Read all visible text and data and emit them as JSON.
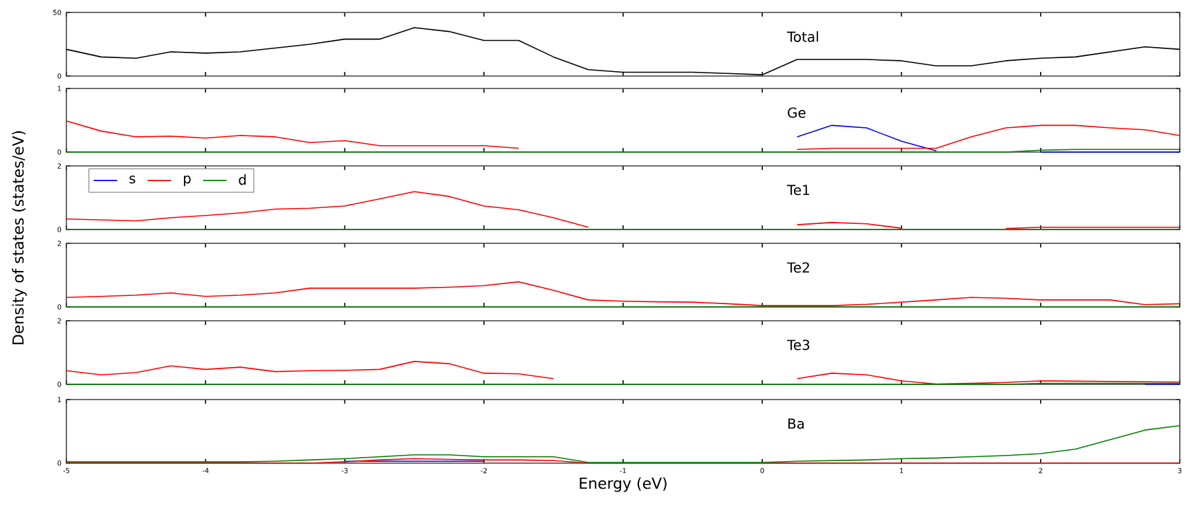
{
  "chart_data": [
    {
      "type": "line",
      "annotations": [
        "Total"
      ],
      "x": [
        -5,
        -4.75,
        -4.5,
        -4.25,
        -4,
        -3.75,
        -3.5,
        -3.25,
        -3,
        -2.75,
        -2.5,
        -2.25,
        -2,
        -1.75,
        -1.5,
        -1.25,
        -1,
        -0.75,
        -0.5,
        -0.25,
        0,
        0.25,
        0.5,
        0.75,
        1,
        1.25,
        1.5,
        1.75,
        2,
        2.25,
        2.5,
        2.75,
        3
      ],
      "xlim": [
        -5,
        3
      ],
      "xticks": [
        -5,
        -4,
        -3,
        -2,
        -1,
        0,
        1,
        2,
        3
      ],
      "ylim": [
        0,
        50
      ],
      "yticks": [
        0,
        50
      ],
      "tick_labels": "y",
      "series": [
        {
          "color": "#000000",
          "values": [
            21,
            15,
            14,
            19,
            18,
            19,
            22,
            25,
            29,
            29,
            38,
            35,
            28,
            28,
            15,
            5,
            3,
            3,
            3,
            2,
            1,
            13,
            13,
            13,
            12,
            8,
            8,
            12,
            14,
            15,
            19,
            23,
            21
          ]
        }
      ]
    },
    {
      "type": "line",
      "annotations": [
        "Ge"
      ],
      "x": [
        -5,
        -4.75,
        -4.5,
        -4.25,
        -4,
        -3.75,
        -3.5,
        -3.25,
        -3,
        -2.75,
        -2.5,
        -2.25,
        -2,
        -1.75,
        -1.5,
        -1.25,
        -1,
        -0.75,
        -0.5,
        -0.25,
        0,
        0.25,
        0.5,
        0.75,
        1,
        1.25,
        1.5,
        1.75,
        2,
        2.25,
        2.5,
        2.75,
        3
      ],
      "xlim": [
        -5,
        3
      ],
      "xticks": [
        -5,
        -4,
        -3,
        -2,
        -1,
        0,
        1,
        2,
        3
      ],
      "ylim": [
        0,
        1
      ],
      "yticks": [
        0,
        1
      ],
      "tick_labels": "y",
      "series": [
        {
          "color": "#0000ff",
          "values": [
            null,
            null,
            null,
            null,
            null,
            null,
            null,
            null,
            null,
            null,
            null,
            null,
            null,
            null,
            null,
            null,
            null,
            null,
            null,
            null,
            null,
            0.24,
            0.42,
            0.38,
            0.17,
            0.02,
            null,
            null,
            0,
            0,
            0,
            0,
            0
          ]
        },
        {
          "color": "#ff0000",
          "values": [
            0.49,
            0.33,
            0.24,
            0.25,
            0.22,
            0.26,
            0.24,
            0.15,
            0.18,
            0.1,
            0.1,
            0.1,
            0.1,
            0.06,
            null,
            null,
            null,
            null,
            null,
            null,
            null,
            0.04,
            0.06,
            0.06,
            0.06,
            0.06,
            0.24,
            0.38,
            0.42,
            0.42,
            0.38,
            0.35,
            0.26
          ]
        },
        {
          "color": "#008000",
          "values": [
            0,
            0,
            0,
            0,
            0,
            0,
            0,
            0,
            0,
            0,
            0,
            0,
            0,
            0,
            0,
            0,
            0,
            0,
            0,
            0,
            0,
            0,
            0,
            0,
            0,
            0,
            0,
            0,
            0.03,
            0.04,
            0.04,
            0.04,
            0.04
          ]
        }
      ]
    },
    {
      "type": "line",
      "annotations": [
        "Te1"
      ],
      "ylabel": "Density of states (states/eV)",
      "legend": "top left",
      "x": [
        -5,
        -4.75,
        -4.5,
        -4.25,
        -4,
        -3.75,
        -3.5,
        -3.25,
        -3,
        -2.75,
        -2.5,
        -2.25,
        -2,
        -1.75,
        -1.5,
        -1.25,
        -1,
        -0.75,
        -0.5,
        -0.25,
        0,
        0.25,
        0.5,
        0.75,
        1,
        1.25,
        1.5,
        1.75,
        2,
        2.25,
        2.5,
        2.75,
        3
      ],
      "xlim": [
        -5,
        3
      ],
      "xticks": [
        -5,
        -4,
        -3,
        -2,
        -1,
        0,
        1,
        2,
        3
      ],
      "ylim": [
        0,
        2
      ],
      "yticks": [
        0,
        2
      ],
      "tick_labels": "y",
      "series": [
        {
          "name": "s",
          "color": "#0000ff",
          "values": [
            null,
            null,
            null,
            null,
            null,
            null,
            null,
            null,
            null,
            null,
            null,
            null,
            null,
            null,
            null,
            null,
            null,
            null,
            null,
            null,
            null,
            null,
            null,
            null,
            null,
            null,
            null,
            null,
            null,
            null,
            null,
            null,
            null
          ]
        },
        {
          "name": "p",
          "color": "#ff0000",
          "values": [
            0.33,
            0.3,
            0.27,
            0.37,
            0.44,
            0.52,
            0.64,
            0.67,
            0.74,
            0.96,
            1.19,
            1.04,
            0.74,
            0.62,
            0.37,
            0.07,
            null,
            null,
            null,
            null,
            null,
            0.15,
            0.22,
            0.18,
            0.04,
            null,
            null,
            0.03,
            0.07,
            0.07,
            0.07,
            0.07,
            0.07
          ]
        },
        {
          "name": "d",
          "color": "#008000",
          "values": [
            0,
            0,
            0,
            0,
            0,
            0,
            0,
            0,
            0,
            0,
            0,
            0,
            0,
            0,
            0,
            0,
            0,
            0,
            0,
            0,
            0,
            0,
            0,
            0,
            0,
            0,
            0,
            0,
            0,
            0,
            0,
            0,
            0
          ]
        }
      ]
    },
    {
      "type": "line",
      "annotations": [
        "Te2"
      ],
      "x": [
        -5,
        -4.75,
        -4.5,
        -4.25,
        -4,
        -3.75,
        -3.5,
        -3.25,
        -3,
        -2.75,
        -2.5,
        -2.25,
        -2,
        -1.75,
        -1.5,
        -1.25,
        -1,
        -0.75,
        -0.5,
        -0.25,
        0,
        0.25,
        0.5,
        0.75,
        1,
        1.25,
        1.5,
        1.75,
        2,
        2.25,
        2.5,
        2.75,
        3
      ],
      "xlim": [
        -5,
        3
      ],
      "xticks": [
        -5,
        -4,
        -3,
        -2,
        -1,
        0,
        1,
        2,
        3
      ],
      "ylim": [
        0,
        2
      ],
      "yticks": [
        0,
        2
      ],
      "tick_labels": "y",
      "series": [
        {
          "color": "#0000ff",
          "values": [
            null,
            null,
            null,
            null,
            null,
            null,
            null,
            null,
            null,
            null,
            null,
            null,
            null,
            null,
            null,
            null,
            null,
            null,
            null,
            null,
            null,
            null,
            null,
            null,
            null,
            null,
            null,
            null,
            null,
            null,
            null,
            null,
            null
          ]
        },
        {
          "color": "#ff0000",
          "values": [
            0.3,
            0.33,
            0.37,
            0.44,
            0.33,
            0.37,
            0.44,
            0.59,
            0.59,
            0.59,
            0.59,
            0.62,
            0.67,
            0.79,
            0.52,
            0.22,
            0.18,
            0.16,
            0.15,
            0.1,
            0.04,
            0.04,
            0.04,
            0.08,
            0.15,
            0.22,
            0.3,
            0.27,
            0.22,
            0.22,
            0.22,
            0.07,
            0.1
          ]
        },
        {
          "color": "#008000",
          "values": [
            0,
            0,
            0,
            0,
            0,
            0,
            0,
            0,
            0,
            0,
            0,
            0,
            0,
            0,
            0,
            0,
            0,
            0,
            0,
            0,
            0,
            0,
            0,
            0,
            0,
            0,
            0,
            0,
            0,
            0,
            0,
            0,
            0
          ]
        }
      ]
    },
    {
      "type": "line",
      "annotations": [
        "Te3"
      ],
      "x": [
        -5,
        -4.75,
        -4.5,
        -4.25,
        -4,
        -3.75,
        -3.5,
        -3.25,
        -3,
        -2.75,
        -2.5,
        -2.25,
        -2,
        -1.75,
        -1.5,
        -1.25,
        -1,
        -0.75,
        -0.5,
        -0.25,
        0,
        0.25,
        0.5,
        0.75,
        1,
        1.25,
        1.5,
        1.75,
        2,
        2.25,
        2.5,
        2.75,
        3
      ],
      "xlim": [
        -5,
        3
      ],
      "xticks": [
        -5,
        -4,
        -3,
        -2,
        -1,
        0,
        1,
        2,
        3
      ],
      "ylim": [
        0,
        2
      ],
      "yticks": [
        0,
        2
      ],
      "tick_labels": "y",
      "series": [
        {
          "color": "#0000ff",
          "values": [
            null,
            null,
            null,
            null,
            null,
            null,
            null,
            null,
            null,
            null,
            null,
            null,
            null,
            null,
            null,
            null,
            null,
            null,
            null,
            null,
            null,
            null,
            null,
            null,
            null,
            null,
            null,
            null,
            null,
            null,
            null,
            0,
            0
          ]
        },
        {
          "color": "#ff0000",
          "values": [
            0.43,
            0.3,
            0.37,
            0.58,
            0.47,
            0.54,
            0.4,
            0.43,
            0.44,
            0.47,
            0.72,
            0.65,
            0.35,
            0.33,
            0.18,
            null,
            null,
            null,
            null,
            null,
            null,
            0.18,
            0.35,
            0.3,
            0.11,
            0.01,
            0.03,
            0.06,
            0.11,
            0.1,
            0.09,
            0.08,
            0.07
          ]
        },
        {
          "color": "#008000",
          "values": [
            0,
            0,
            0,
            0,
            0,
            0,
            0,
            0,
            0,
            0,
            0,
            0,
            0,
            0,
            0,
            0,
            0,
            0,
            0,
            0,
            0,
            0,
            0,
            0,
            0,
            0,
            0,
            0,
            0.03,
            0.03,
            0.03,
            0.03,
            0.03
          ]
        }
      ]
    },
    {
      "type": "line",
      "annotations": [
        "Ba"
      ],
      "xlabel": "Energy (eV)",
      "x": [
        -5,
        -4.75,
        -4.5,
        -4.25,
        -4,
        -3.75,
        -3.5,
        -3.25,
        -3,
        -2.75,
        -2.5,
        -2.25,
        -2,
        -1.75,
        -1.5,
        -1.25,
        -1,
        -0.75,
        -0.5,
        -0.25,
        0,
        0.25,
        0.5,
        0.75,
        1,
        1.25,
        1.5,
        1.75,
        2,
        2.25,
        2.5,
        2.75,
        3
      ],
      "xlim": [
        -5,
        3
      ],
      "xticks": [
        -5,
        -4,
        -3,
        -2,
        -1,
        0,
        1,
        2,
        3
      ],
      "ylim": [
        0,
        1
      ],
      "yticks": [
        0,
        1
      ],
      "series": [
        {
          "color": "#0000ff",
          "values": [
            null,
            null,
            null,
            null,
            null,
            null,
            null,
            null,
            0.03,
            0.03,
            0.03,
            0.03,
            0.03,
            null,
            null,
            null,
            null,
            null,
            null,
            null,
            null,
            null,
            null,
            null,
            null,
            null,
            null,
            null,
            null,
            null,
            null,
            null,
            null
          ]
        },
        {
          "color": "#ff0000",
          "values": [
            0,
            0,
            0,
            0,
            0,
            0,
            0,
            0,
            0.02,
            0.05,
            0.07,
            0.06,
            0.05,
            0.05,
            0.04,
            0,
            0,
            0,
            0,
            0,
            0,
            0,
            0,
            0,
            0,
            0,
            0,
            0,
            0,
            0,
            0,
            0,
            0
          ]
        },
        {
          "color": "#008000",
          "values": [
            0.02,
            0.02,
            0.02,
            0.02,
            0.02,
            0.02,
            0.03,
            0.05,
            0.07,
            0.1,
            0.13,
            0.13,
            0.1,
            0.1,
            0.1,
            0.01,
            0.01,
            0.01,
            0.01,
            0.01,
            0.01,
            0.03,
            0.04,
            0.05,
            0.07,
            0.08,
            0.1,
            0.12,
            0.15,
            0.22,
            0.37,
            0.52,
            0.59
          ]
        }
      ]
    }
  ]
}
